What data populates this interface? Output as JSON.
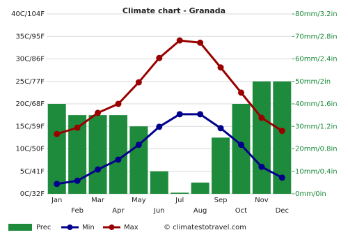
{
  "chart_data": {
    "type": "combo",
    "title": "Climate chart - Granada",
    "categories": [
      "Jan",
      "Feb",
      "Mar",
      "Apr",
      "May",
      "Jun",
      "Jul",
      "Aug",
      "Sep",
      "Oct",
      "Nov",
      "Dec"
    ],
    "series": [
      {
        "name": "Prec",
        "type": "bar",
        "axis": "y2",
        "color": "#1e8b3c",
        "values": [
          40,
          35,
          35,
          35,
          30,
          10,
          0.5,
          5,
          25,
          40,
          50,
          50
        ]
      },
      {
        "name": "Min",
        "type": "line",
        "color": "#00008b",
        "values": [
          2.2,
          2.9,
          5.4,
          7.6,
          10.9,
          14.9,
          17.7,
          17.7,
          14.6,
          10.9,
          6.0,
          3.6
        ]
      },
      {
        "name": "Max",
        "type": "line",
        "color": "#990000",
        "values": [
          13.3,
          14.7,
          18.0,
          20.0,
          24.8,
          30.2,
          34.1,
          33.6,
          28.1,
          22.5,
          16.9,
          14.0
        ]
      }
    ],
    "ylim": [
      0,
      40
    ],
    "yticks": [
      {
        "value": 0,
        "label": "0C/32F"
      },
      {
        "value": 5,
        "label": "5C/41F"
      },
      {
        "value": 10,
        "label": "10C/50F"
      },
      {
        "value": 15,
        "label": "15C/59F"
      },
      {
        "value": 20,
        "label": "20C/68F"
      },
      {
        "value": 25,
        "label": "25C/77F"
      },
      {
        "value": 30,
        "label": "30C/86F"
      },
      {
        "value": 35,
        "label": "35C/95F"
      },
      {
        "value": 40,
        "label": "40C/104F"
      }
    ],
    "y2lim": [
      0,
      80
    ],
    "y2ticks": [
      {
        "value": 0,
        "label": "0mm/0in"
      },
      {
        "value": 10,
        "label": "10mm/0.4in"
      },
      {
        "value": 20,
        "label": "20mm/0.8in"
      },
      {
        "value": 30,
        "label": "30mm/1.2in"
      },
      {
        "value": 40,
        "label": "40mm/1.6in"
      },
      {
        "value": 50,
        "label": "50mm/2in"
      },
      {
        "value": 60,
        "label": "60mm/2.4in"
      },
      {
        "value": 70,
        "label": "70mm/2.8in"
      },
      {
        "value": 80,
        "label": "80mm/3.2in"
      }
    ],
    "grid": true,
    "source": "© climatestotravel.com"
  }
}
